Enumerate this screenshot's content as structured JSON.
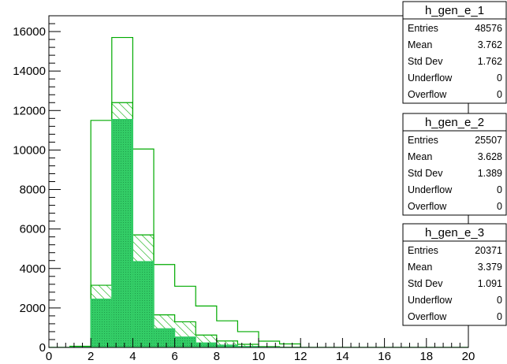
{
  "chart_data": {
    "type": "bar",
    "title": "",
    "xlabel": "",
    "ylabel": "",
    "xlim": [
      0,
      20
    ],
    "ylim": [
      0,
      16800
    ],
    "x_ticks": [
      "0",
      "2",
      "4",
      "6",
      "8",
      "10",
      "12",
      "14",
      "16",
      "18",
      "20"
    ],
    "y_ticks": [
      "0",
      "2000",
      "4000",
      "6000",
      "8000",
      "10000",
      "12000",
      "14000",
      "16000"
    ],
    "bin_edges": [
      0,
      1,
      2,
      3,
      4,
      5,
      6,
      7,
      8,
      9,
      10,
      11,
      12,
      13,
      14,
      15,
      16,
      17,
      18,
      19,
      20
    ],
    "series": [
      {
        "name": "h_gen_e_1",
        "style": "outline",
        "color": "#00aa00",
        "values": [
          0,
          60,
          11500,
          15700,
          10050,
          4200,
          3100,
          2100,
          1350,
          800,
          320,
          180,
          0,
          0,
          0,
          0,
          0,
          0,
          0,
          0
        ]
      },
      {
        "name": "h_gen_e_2",
        "style": "hatched",
        "color": "#00aa00",
        "values": [
          0,
          30,
          3150,
          12400,
          5700,
          1650,
          1300,
          630,
          330,
          160,
          40,
          10,
          0,
          0,
          0,
          0,
          0,
          0,
          0,
          0
        ]
      },
      {
        "name": "h_gen_e_3",
        "style": "filled",
        "color": "#33cc66",
        "values": [
          0,
          20,
          2450,
          11550,
          4350,
          950,
          530,
          230,
          120,
          50,
          15,
          5,
          0,
          0,
          0,
          0,
          0,
          0,
          0,
          0
        ]
      }
    ],
    "stats_boxes": [
      {
        "title": "h_gen_e_1",
        "rows": [
          {
            "label": "Entries",
            "value": "48576"
          },
          {
            "label": "Mean",
            "value": "3.762"
          },
          {
            "label": "Std Dev",
            "value": "1.762"
          },
          {
            "label": "Underflow",
            "value": "0"
          },
          {
            "label": "Overflow",
            "value": "0"
          }
        ]
      },
      {
        "title": "h_gen_e_2",
        "rows": [
          {
            "label": "Entries",
            "value": "25507"
          },
          {
            "label": "Mean",
            "value": "3.628"
          },
          {
            "label": "Std Dev",
            "value": "1.389"
          },
          {
            "label": "Underflow",
            "value": "0"
          },
          {
            "label": "Overflow",
            "value": "0"
          }
        ]
      },
      {
        "title": "h_gen_e_3",
        "rows": [
          {
            "label": "Entries",
            "value": "20371"
          },
          {
            "label": "Mean",
            "value": "3.379"
          },
          {
            "label": "Std Dev",
            "value": "1.091"
          },
          {
            "label": "Underflow",
            "value": "0"
          },
          {
            "label": "Overflow",
            "value": "0"
          }
        ]
      }
    ],
    "grid": false,
    "legend": "top-right"
  }
}
